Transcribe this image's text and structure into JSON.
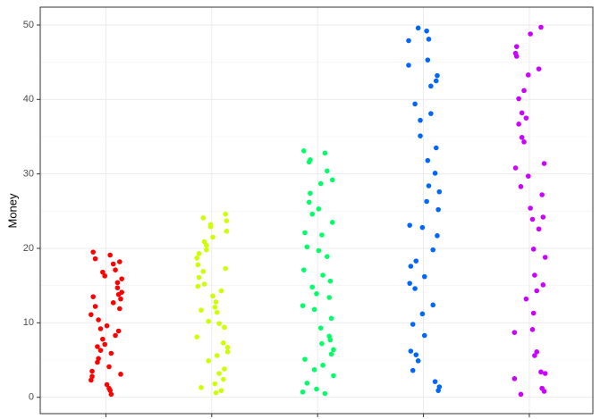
{
  "chart_data": {
    "type": "strip",
    "ylabel": "Money",
    "categories": [
      null,
      null,
      null,
      null,
      null
    ],
    "xlim": [
      0.38,
      5.6
    ],
    "ylim": [
      -2.2,
      52.4
    ],
    "yticks": [
      0,
      10,
      20,
      30,
      40,
      50
    ],
    "grid": true,
    "series": [
      {
        "color": "#ff0000",
        "x": [
          0.88,
          1.05,
          1.14,
          0.97,
          1.09,
          0.86,
          1.01,
          1.11,
          0.92,
          1.13,
          0.9,
          1.03,
          0.95,
          1.15,
          0.87,
          1.07,
          0.99,
          1.12,
          0.93,
          1.04,
          1.04,
          0.93,
          1.12,
          0.99,
          1.07,
          0.87,
          1.15,
          0.95,
          1.03,
          0.9,
          1.13,
          0.92,
          1.11,
          1.01,
          0.86,
          1.09,
          0.97,
          1.14,
          1.05,
          0.88
        ],
        "values": [
          19.5,
          0.4,
          13.2,
          7.8,
          17.1,
          2.3,
          9.6,
          15.4,
          4.7,
          11.9,
          18.6,
          1.2,
          6.3,
          14.1,
          3.5,
          12.7,
          16.3,
          8.9,
          5.2,
          19.1,
          0.9,
          10.4,
          13.8,
          7.1,
          17.9,
          2.8,
          15.9,
          9.2,
          4.1,
          12.2,
          18.2,
          6.8,
          14.7,
          1.7,
          11.1,
          8.3,
          16.8,
          3.1,
          5.9,
          13.5
        ]
      },
      {
        "color": "#ccff00",
        "x": [
          2.13,
          1.9,
          2.03,
          1.95,
          2.15,
          1.87,
          2.07,
          1.99,
          2.12,
          1.93,
          2.04,
          1.88,
          2.05,
          2.14,
          1.97,
          2.09,
          1.86,
          2.01,
          2.11,
          1.92,
          1.92,
          2.11,
          2.01,
          1.86,
          2.09,
          1.97,
          2.14,
          2.05,
          1.88,
          2.04,
          1.93,
          2.12,
          1.99,
          2.07,
          1.87,
          2.15,
          1.95,
          2.03,
          1.9,
          2.13
        ],
        "values": [
          24.6,
          1.3,
          12.1,
          20.4,
          6.7,
          17.8,
          3.2,
          22.9,
          9.4,
          15.2,
          0.6,
          19.3,
          11.4,
          23.7,
          4.9,
          14.3,
          8.1,
          21.5,
          2.4,
          16.9,
          24.1,
          7.3,
          13.6,
          18.7,
          0.9,
          10.2,
          22.3,
          5.6,
          16.1,
          12.8,
          20.9,
          3.8,
          23.2,
          9.9,
          14.9,
          6.1,
          19.8,
          1.8,
          11.7,
          17.3
        ]
      },
      {
        "color": "#00ff66",
        "x": [
          3.07,
          2.99,
          3.12,
          2.93,
          3.04,
          2.88,
          3.05,
          3.14,
          2.97,
          3.09,
          2.86,
          3.01,
          3.11,
          2.92,
          3.13,
          2.9,
          3.03,
          2.95,
          3.15,
          2.87,
          2.87,
          3.15,
          2.95,
          3.03,
          2.9,
          3.13,
          2.92,
          3.11,
          3.01,
          2.86,
          3.09,
          2.97,
          3.14,
          3.05,
          2.88,
          3.04,
          2.93,
          3.12,
          2.99,
          3.07
        ],
        "values": [
          32.8,
          1.1,
          15.6,
          27.4,
          7.2,
          22.1,
          4.3,
          29.2,
          11.8,
          18.9,
          0.7,
          25.3,
          13.4,
          31.6,
          5.8,
          20.2,
          9.3,
          24.6,
          2.9,
          17.1,
          33.1,
          6.4,
          14.8,
          28.7,
          1.9,
          10.6,
          26.2,
          8.2,
          19.7,
          12.3,
          30.4,
          3.7,
          23.5,
          16.4,
          5.1,
          21.8,
          31.9,
          7.7,
          13.9,
          0.5
        ]
      },
      {
        "color": "#0066ff",
        "x": [
          3.95,
          4.15,
          3.87,
          4.07,
          3.99,
          4.12,
          3.93,
          4.04,
          3.88,
          4.05,
          4.14,
          3.97,
          4.09,
          3.86,
          4.01,
          4.11,
          3.92,
          4.13,
          3.9,
          4.03,
          4.03,
          3.9,
          4.13,
          3.92,
          4.11,
          4.01,
          3.86,
          4.09,
          3.97,
          4.14,
          4.05,
          3.88,
          4.04,
          3.93,
          4.12,
          3.99,
          4.07,
          3.87,
          4.15,
          3.95
        ],
        "values": [
          49.6,
          1.4,
          23.1,
          41.8,
          11.2,
          33.5,
          5.7,
          45.3,
          17.6,
          28.4,
          0.9,
          37.2,
          19.8,
          47.9,
          8.3,
          30.1,
          14.6,
          43.2,
          3.6,
          26.3,
          49.2,
          9.8,
          21.7,
          39.4,
          2.1,
          16.2,
          44.6,
          12.4,
          35.1,
          25.2,
          48.1,
          6.2,
          31.8,
          18.3,
          42.5,
          22.8,
          38.1,
          15.3,
          27.6,
          4.9
        ]
      },
      {
        "color": "#cc00ff",
        "x": [
          5.11,
          4.92,
          5.13,
          4.9,
          5.03,
          4.95,
          5.15,
          4.87,
          5.07,
          4.99,
          5.12,
          4.93,
          5.04,
          4.88,
          5.05,
          5.14,
          4.97,
          5.09,
          4.86,
          5.01,
          5.01,
          4.86,
          5.09,
          4.97,
          5.14,
          5.05,
          4.88,
          5.04,
          4.93,
          5.12,
          4.99,
          5.07,
          4.87,
          5.15,
          4.95,
          5.03,
          4.9,
          5.13,
          4.92,
          5.11
        ],
        "values": [
          49.7,
          0.4,
          24.2,
          40.1,
          9.1,
          34.3,
          3.2,
          46.2,
          14.3,
          29.7,
          1.2,
          38.2,
          19.9,
          47.1,
          5.6,
          31.4,
          13.2,
          44.1,
          2.5,
          25.4,
          48.8,
          8.7,
          22.6,
          37.5,
          0.8,
          16.4,
          45.8,
          11.3,
          34.9,
          27.2,
          43.3,
          6.1,
          30.8,
          18.8,
          41.2,
          23.9,
          36.7,
          15.1,
          28.3,
          3.4
        ]
      }
    ]
  }
}
